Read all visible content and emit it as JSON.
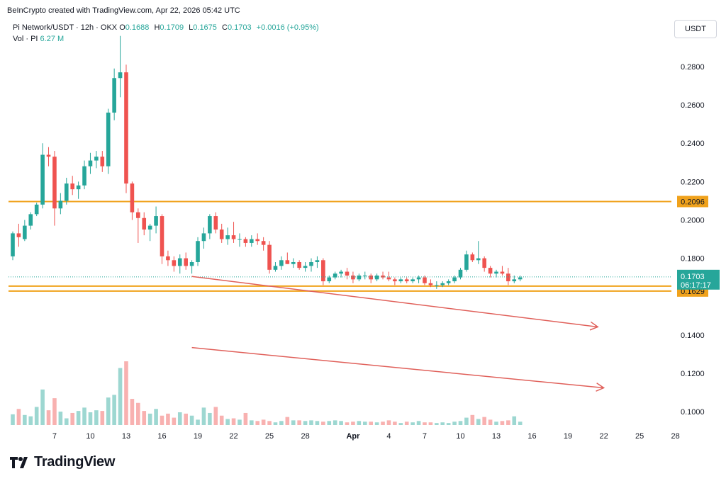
{
  "header": {
    "text": "BeInCrypto created with TradingView.com, Apr 22, 2026 05:42 UTC"
  },
  "legend": {
    "symbol": "Pi Network/USDT · 12h · OKX",
    "o_label": "O",
    "o": "0.1688",
    "h_label": "H",
    "h": "0.1709",
    "l_label": "L",
    "l": "0.1675",
    "c_label": "C",
    "c": "0.1703",
    "change": "+0.0016 (+0.95%)",
    "vol_label": "Vol · PI",
    "vol": "6.27 M"
  },
  "currency_button": "USDT",
  "brand": {
    "name": "TradingView"
  },
  "colors": {
    "up": "#26a69a",
    "down": "#ef5350",
    "level": "#f0a21c",
    "arrow": "#e0605a"
  },
  "chart_data": {
    "type": "candlestick",
    "interval": "12h",
    "ylim": [
      0.093,
      0.297
    ],
    "y_ticks": [
      {
        "value": 0.28,
        "label": "0.2800"
      },
      {
        "value": 0.26,
        "label": "0.2600"
      },
      {
        "value": 0.24,
        "label": "0.2400"
      },
      {
        "value": 0.22,
        "label": "0.2200"
      },
      {
        "value": 0.2,
        "label": "0.2000"
      },
      {
        "value": 0.18,
        "label": "0.1800"
      },
      {
        "value": 0.14,
        "label": "0.1400"
      },
      {
        "value": 0.12,
        "label": "0.1200"
      },
      {
        "value": 0.1,
        "label": "0.1000"
      }
    ],
    "x_ticks": [
      {
        "index": 7,
        "label": "7"
      },
      {
        "index": 13,
        "label": "10"
      },
      {
        "index": 19,
        "label": "13"
      },
      {
        "index": 25,
        "label": "16"
      },
      {
        "index": 31,
        "label": "19"
      },
      {
        "index": 37,
        "label": "22"
      },
      {
        "index": 43,
        "label": "25"
      },
      {
        "index": 49,
        "label": "28"
      },
      {
        "index": 57,
        "label": "Apr"
      },
      {
        "index": 63,
        "label": "4"
      },
      {
        "index": 69,
        "label": "7"
      },
      {
        "index": 75,
        "label": "10"
      },
      {
        "index": 81,
        "label": "13"
      },
      {
        "index": 87,
        "label": "16"
      },
      {
        "index": 93,
        "label": "19"
      },
      {
        "index": 99,
        "label": "22"
      },
      {
        "index": 105,
        "label": "25"
      },
      {
        "index": 111,
        "label": "28"
      }
    ],
    "levels": [
      {
        "value": 0.2096,
        "label": "0.2096"
      },
      {
        "value": 0.1655,
        "label": "0.1655"
      },
      {
        "value": 0.1629,
        "label": "0.1629"
      }
    ],
    "last_price": {
      "value": 0.1703,
      "label": "0.1703",
      "countdown": "06:17:17"
    },
    "price_trendline": {
      "from": {
        "index": 30,
        "value": 0.1705
      },
      "to": {
        "index": 98,
        "value": 0.1442
      }
    },
    "volume_trendline": {
      "from": {
        "index": 30,
        "value": 0.1334
      },
      "to": {
        "index": 99,
        "value": 0.1124
      }
    },
    "candles": [
      [
        0.181,
        0.194,
        0.179,
        0.193
      ],
      [
        0.193,
        0.198,
        0.186,
        0.191
      ],
      [
        0.19,
        0.2,
        0.189,
        0.197
      ],
      [
        0.197,
        0.204,
        0.195,
        0.203
      ],
      [
        0.203,
        0.209,
        0.202,
        0.208
      ],
      [
        0.208,
        0.24,
        0.206,
        0.234
      ],
      [
        0.234,
        0.238,
        0.228,
        0.233
      ],
      [
        0.233,
        0.236,
        0.197,
        0.206
      ],
      [
        0.206,
        0.214,
        0.203,
        0.21
      ],
      [
        0.21,
        0.222,
        0.208,
        0.219
      ],
      [
        0.219,
        0.223,
        0.213,
        0.216
      ],
      [
        0.216,
        0.22,
        0.211,
        0.218
      ],
      [
        0.218,
        0.231,
        0.216,
        0.228
      ],
      [
        0.228,
        0.235,
        0.224,
        0.231
      ],
      [
        0.231,
        0.236,
        0.227,
        0.233
      ],
      [
        0.233,
        0.236,
        0.225,
        0.228
      ],
      [
        0.228,
        0.258,
        0.224,
        0.256
      ],
      [
        0.256,
        0.279,
        0.252,
        0.274
      ],
      [
        0.274,
        0.296,
        0.264,
        0.277
      ],
      [
        0.277,
        0.281,
        0.214,
        0.219
      ],
      [
        0.219,
        0.22,
        0.2,
        0.204
      ],
      [
        0.204,
        0.206,
        0.188,
        0.201
      ],
      [
        0.201,
        0.204,
        0.192,
        0.195
      ],
      [
        0.195,
        0.198,
        0.189,
        0.197
      ],
      [
        0.197,
        0.207,
        0.193,
        0.202
      ],
      [
        0.202,
        0.203,
        0.177,
        0.181
      ],
      [
        0.181,
        0.184,
        0.176,
        0.179
      ],
      [
        0.179,
        0.181,
        0.173,
        0.176
      ],
      [
        0.176,
        0.182,
        0.172,
        0.18
      ],
      [
        0.18,
        0.183,
        0.174,
        0.176
      ],
      [
        0.176,
        0.179,
        0.172,
        0.178
      ],
      [
        0.178,
        0.191,
        0.176,
        0.189
      ],
      [
        0.189,
        0.196,
        0.185,
        0.193
      ],
      [
        0.193,
        0.203,
        0.19,
        0.202
      ],
      [
        0.202,
        0.204,
        0.193,
        0.195
      ],
      [
        0.195,
        0.198,
        0.188,
        0.19
      ],
      [
        0.19,
        0.196,
        0.187,
        0.192
      ],
      [
        0.192,
        0.199,
        0.188,
        0.19
      ],
      [
        0.19,
        0.193,
        0.186,
        0.19
      ],
      [
        0.19,
        0.191,
        0.186,
        0.188
      ],
      [
        0.188,
        0.192,
        0.186,
        0.19
      ],
      [
        0.19,
        0.193,
        0.187,
        0.189
      ],
      [
        0.189,
        0.191,
        0.184,
        0.187
      ],
      [
        0.187,
        0.189,
        0.172,
        0.174
      ],
      [
        0.174,
        0.178,
        0.173,
        0.176
      ],
      [
        0.176,
        0.181,
        0.174,
        0.179
      ],
      [
        0.179,
        0.183,
        0.177,
        0.177
      ],
      [
        0.177,
        0.18,
        0.175,
        0.178
      ],
      [
        0.178,
        0.179,
        0.174,
        0.175
      ],
      [
        0.175,
        0.178,
        0.173,
        0.176
      ],
      [
        0.176,
        0.18,
        0.173,
        0.178
      ],
      [
        0.178,
        0.181,
        0.175,
        0.179
      ],
      [
        0.179,
        0.18,
        0.166,
        0.168
      ],
      [
        0.168,
        0.171,
        0.167,
        0.17
      ],
      [
        0.17,
        0.173,
        0.169,
        0.172
      ],
      [
        0.172,
        0.174,
        0.17,
        0.173
      ],
      [
        0.173,
        0.175,
        0.169,
        0.171
      ],
      [
        0.171,
        0.173,
        0.167,
        0.169
      ],
      [
        0.169,
        0.172,
        0.168,
        0.171
      ],
      [
        0.171,
        0.173,
        0.169,
        0.171
      ],
      [
        0.171,
        0.172,
        0.167,
        0.169
      ],
      [
        0.169,
        0.172,
        0.168,
        0.171
      ],
      [
        0.171,
        0.173,
        0.169,
        0.17
      ],
      [
        0.17,
        0.173,
        0.168,
        0.169
      ],
      [
        0.169,
        0.17,
        0.166,
        0.168
      ],
      [
        0.168,
        0.17,
        0.167,
        0.169
      ],
      [
        0.169,
        0.17,
        0.167,
        0.168
      ],
      [
        0.168,
        0.17,
        0.167,
        0.169
      ],
      [
        0.169,
        0.171,
        0.167,
        0.17
      ],
      [
        0.17,
        0.171,
        0.166,
        0.167
      ],
      [
        0.167,
        0.169,
        0.165,
        0.166
      ],
      [
        0.166,
        0.168,
        0.164,
        0.166
      ],
      [
        0.166,
        0.168,
        0.165,
        0.167
      ],
      [
        0.167,
        0.169,
        0.166,
        0.168
      ],
      [
        0.168,
        0.171,
        0.167,
        0.17
      ],
      [
        0.17,
        0.175,
        0.169,
        0.174
      ],
      [
        0.174,
        0.184,
        0.173,
        0.182
      ],
      [
        0.182,
        0.183,
        0.178,
        0.179
      ],
      [
        0.179,
        0.189,
        0.177,
        0.18
      ],
      [
        0.18,
        0.181,
        0.173,
        0.175
      ],
      [
        0.175,
        0.176,
        0.17,
        0.172
      ],
      [
        0.172,
        0.174,
        0.17,
        0.173
      ],
      [
        0.173,
        0.176,
        0.171,
        0.172
      ],
      [
        0.172,
        0.175,
        0.166,
        0.168
      ],
      [
        0.168,
        0.171,
        0.167,
        0.169
      ],
      [
        0.169,
        0.171,
        0.168,
        0.17
      ]
    ],
    "volume_scale": 0.035,
    "volume": [
      0.16,
      0.24,
      0.15,
      0.13,
      0.27,
      0.53,
      0.22,
      0.4,
      0.2,
      0.1,
      0.18,
      0.21,
      0.26,
      0.19,
      0.22,
      0.21,
      0.41,
      0.45,
      0.85,
      0.95,
      0.39,
      0.33,
      0.21,
      0.17,
      0.24,
      0.14,
      0.17,
      0.11,
      0.19,
      0.17,
      0.14,
      0.08,
      0.26,
      0.18,
      0.27,
      0.14,
      0.09,
      0.1,
      0.08,
      0.18,
      0.07,
      0.06,
      0.08,
      0.06,
      0.04,
      0.06,
      0.12,
      0.07,
      0.07,
      0.06,
      0.07,
      0.06,
      0.05,
      0.06,
      0.07,
      0.06,
      0.04,
      0.05,
      0.06,
      0.05,
      0.05,
      0.04,
      0.05,
      0.07,
      0.05,
      0.03,
      0.05,
      0.04,
      0.06,
      0.04,
      0.04,
      0.03,
      0.04,
      0.03,
      0.05,
      0.06,
      0.11,
      0.15,
      0.09,
      0.12,
      0.08,
      0.05,
      0.06,
      0.07,
      0.13,
      0.05
    ]
  }
}
